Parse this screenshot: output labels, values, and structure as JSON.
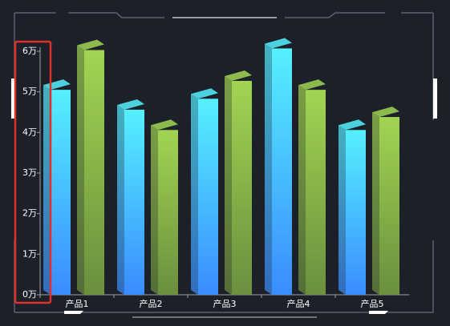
{
  "chart_data": {
    "type": "bar3d",
    "categories": [
      "产品1",
      "产品2",
      "产品3",
      "产品4",
      "产品5"
    ],
    "series": [
      {
        "color": [
          "#55f0ff",
          "#3a8cff"
        ],
        "values": [
          50500,
          45600,
          48300,
          60700,
          40600
        ]
      },
      {
        "color": [
          "#a2d452",
          "#6b8f3e"
        ],
        "values": [
          60300,
          40600,
          52700,
          50500,
          43800
        ]
      }
    ],
    "ylim": [
      0,
      60000
    ],
    "yticks": [
      {
        "value": 0,
        "label": "0万"
      },
      {
        "value": 10000,
        "label": "1万"
      },
      {
        "value": 20000,
        "label": "2万"
      },
      {
        "value": 30000,
        "label": "3万"
      },
      {
        "value": 40000,
        "label": "4万"
      },
      {
        "value": 50000,
        "label": "5万"
      },
      {
        "value": 60000,
        "label": "6万"
      }
    ],
    "grid": false
  }
}
